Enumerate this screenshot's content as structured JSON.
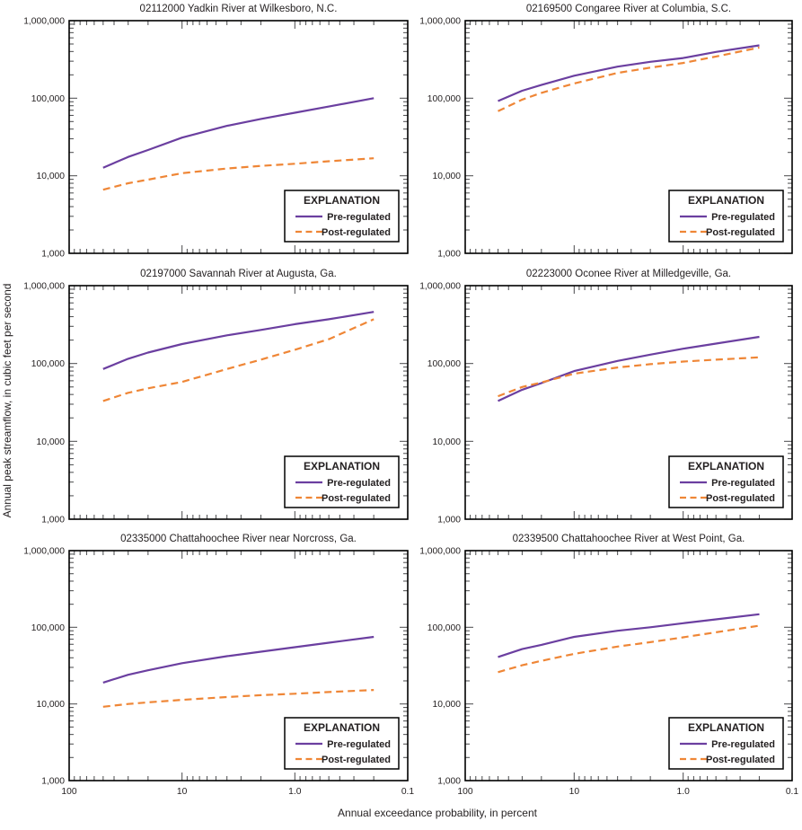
{
  "figure": {
    "x_axis_label": "Annual exceedance probability, in percent",
    "y_axis_label": "Annual peak streamflow, in cubic feet per second",
    "legend": {
      "title": "EXPLANATION",
      "items": [
        {
          "label": "Pre-regulated",
          "style": "solid",
          "color": "#6b3fa0"
        },
        {
          "label": "Post-regulated",
          "style": "dashed",
          "color": "#ef8636"
        }
      ]
    },
    "colors": {
      "pre": "#6b3fa0",
      "post": "#ef8636",
      "border": "#000000",
      "ticks": "#58595b",
      "text": "#231f20",
      "background": "#ffffff"
    }
  },
  "axes": {
    "x_scale": "log-reversed",
    "y_scale": "log",
    "xlim": [
      100,
      0.1
    ],
    "ylim": [
      1000,
      1000000
    ],
    "x_tick_values": [
      100,
      10,
      1.0,
      0.1
    ],
    "x_tick_labels": [
      "100",
      "10",
      "1.0",
      "0.1"
    ],
    "y_tick_values": [
      1000000,
      100000,
      10000,
      1000
    ],
    "y_tick_labels": [
      "1,000,000",
      "100,000",
      "10,000",
      "1,000"
    ],
    "grid": false,
    "legend_position": "lower-right-inside"
  },
  "chart_data": [
    {
      "type": "line",
      "title": "02112000 Yadkin River at Wilkesboro, N.C.",
      "x": [
        50,
        30,
        20,
        10,
        4,
        2,
        1,
        0.5,
        0.2
      ],
      "series": [
        {
          "name": "Pre-regulated",
          "values": [
            12700,
            17500,
            21500,
            31000,
            44000,
            54000,
            65000,
            78000,
            100000
          ]
        },
        {
          "name": "Post-regulated",
          "values": [
            6600,
            8000,
            8900,
            10800,
            12400,
            13400,
            14300,
            15400,
            16800
          ]
        }
      ]
    },
    {
      "type": "line",
      "title": "02169500 Congaree River at Columbia, S.C.",
      "x": [
        50,
        30,
        20,
        10,
        4,
        2,
        1,
        0.5,
        0.2
      ],
      "series": [
        {
          "name": "Pre-regulated",
          "values": [
            92000,
            125000,
            148000,
            195000,
            255000,
            295000,
            330000,
            395000,
            480000
          ]
        },
        {
          "name": "Post-regulated",
          "values": [
            68000,
            96000,
            117000,
            155000,
            212000,
            248000,
            285000,
            345000,
            450000
          ]
        }
      ]
    },
    {
      "type": "line",
      "title": "02197000 Savannah River at Augusta, Ga.",
      "x": [
        50,
        30,
        20,
        10,
        4,
        2,
        1,
        0.5,
        0.2
      ],
      "series": [
        {
          "name": "Pre-regulated",
          "values": [
            85000,
            115000,
            138000,
            178000,
            230000,
            270000,
            320000,
            370000,
            460000
          ]
        },
        {
          "name": "Post-regulated",
          "values": [
            33000,
            42000,
            48000,
            58000,
            85000,
            112000,
            150000,
            205000,
            370000
          ]
        }
      ]
    },
    {
      "type": "line",
      "title": "02223000 Oconee River at Milledgeville, Ga.",
      "x": [
        50,
        30,
        20,
        10,
        4,
        2,
        1,
        0.5,
        0.2
      ],
      "series": [
        {
          "name": "Pre-regulated",
          "values": [
            33000,
            46000,
            56000,
            80000,
            108000,
            130000,
            155000,
            180000,
            220000
          ]
        },
        {
          "name": "Post-regulated",
          "values": [
            38000,
            50000,
            57000,
            74000,
            89000,
            98000,
            106000,
            112000,
            120000
          ]
        }
      ]
    },
    {
      "type": "line",
      "title": "02335000 Chattahoochee River near Norcross, Ga.",
      "x": [
        50,
        30,
        20,
        10,
        4,
        2,
        1,
        0.5,
        0.2
      ],
      "series": [
        {
          "name": "Pre-regulated",
          "values": [
            19000,
            24000,
            27500,
            34000,
            42000,
            48000,
            55000,
            63000,
            75000
          ]
        },
        {
          "name": "Post-regulated",
          "values": [
            9200,
            10000,
            10500,
            11300,
            12300,
            13000,
            13600,
            14300,
            15200
          ]
        }
      ]
    },
    {
      "type": "line",
      "title": "02339500 Chattahoochee River at West Point, Ga.",
      "x": [
        50,
        30,
        20,
        10,
        4,
        2,
        1,
        0.5,
        0.2
      ],
      "series": [
        {
          "name": "Pre-regulated",
          "values": [
            41000,
            52000,
            59000,
            75000,
            90000,
            100000,
            113000,
            127000,
            148000
          ]
        },
        {
          "name": "Post-regulated",
          "values": [
            26000,
            32000,
            36500,
            45000,
            56000,
            64000,
            74000,
            86000,
            105000
          ]
        }
      ]
    }
  ]
}
